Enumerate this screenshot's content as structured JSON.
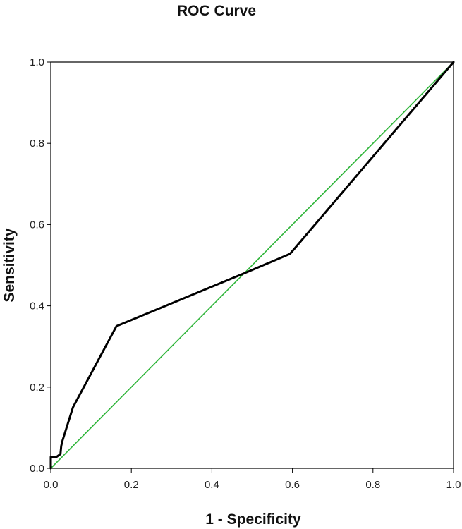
{
  "chart_data": {
    "type": "line",
    "title": "ROC Curve",
    "xlabel": "1 - Specificity",
    "ylabel": "Sensitivity",
    "xlim": [
      0,
      1
    ],
    "ylim": [
      0,
      1
    ],
    "x_ticks": [
      "0.0",
      "0.2",
      "0.4",
      "0.6",
      "0.8",
      "1.0"
    ],
    "y_ticks": [
      "0.0",
      "0.2",
      "0.4",
      "0.6",
      "0.8",
      "1.0"
    ],
    "grid": false,
    "legend": "none",
    "series": [
      {
        "color": "#000000",
        "x": [
          0.0,
          0.0,
          0.014,
          0.024,
          0.026,
          0.029,
          0.055,
          0.163,
          0.48,
          0.594,
          1.0
        ],
        "y": [
          0.0,
          0.028,
          0.028,
          0.035,
          0.055,
          0.068,
          0.15,
          0.35,
          0.48,
          0.528,
          1.0
        ]
      },
      {
        "color": "#2fb53a",
        "x": [
          0.0,
          1.0
        ],
        "y": [
          0.0,
          1.0
        ]
      }
    ]
  }
}
